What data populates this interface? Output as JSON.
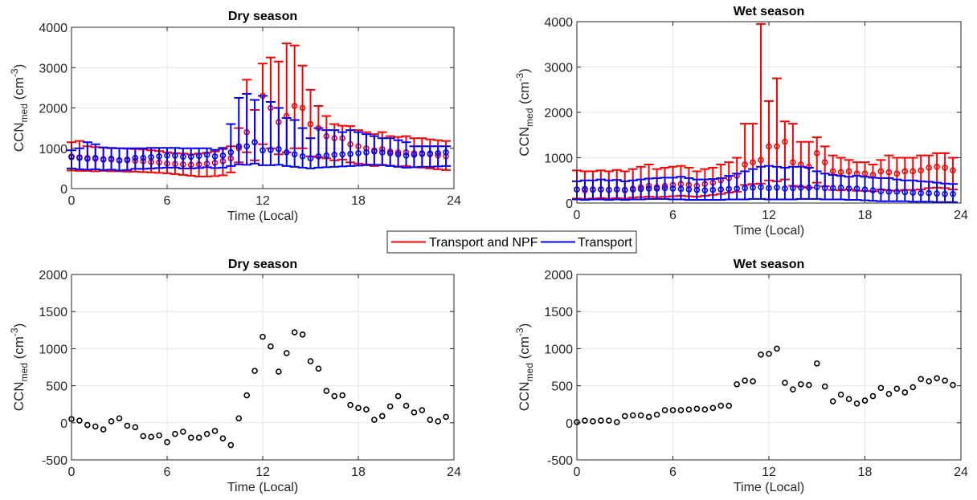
{
  "legend": {
    "items": [
      {
        "label": "Transport and NPF",
        "color": "#ff0000"
      },
      {
        "label": "Transport",
        "color": "#0000ff"
      }
    ]
  },
  "chart_data": [
    {
      "type": "scatter",
      "title": "Dry season",
      "xlabel": "Time (Local)",
      "ylabel": {
        "base": "CCN",
        "sub": "med",
        "unit_open": " (cm",
        "sup": "-3",
        "unit_close": ")"
      },
      "xlim": [
        0,
        24
      ],
      "ylim": [
        0,
        4000
      ],
      "xticks": [
        0,
        6,
        12,
        18,
        24
      ],
      "yticks": [
        0,
        1000,
        2000,
        3000,
        4000
      ],
      "grid": true,
      "x": [
        0,
        0.5,
        1,
        1.5,
        2,
        2.5,
        3,
        3.5,
        4,
        4.5,
        5,
        5.5,
        6,
        6.5,
        7,
        7.5,
        8,
        8.5,
        9,
        9.5,
        10,
        10.5,
        11,
        11.5,
        12,
        12.5,
        13,
        13.5,
        14,
        14.5,
        15,
        15.5,
        16,
        16.5,
        17,
        17.5,
        18,
        18.5,
        19,
        19.5,
        20,
        20.5,
        21,
        21.5,
        22,
        22.5,
        23,
        23.5
      ],
      "series": [
        {
          "name": "Transport and NPF",
          "color": "#ff0000",
          "values": [
            800,
            780,
            760,
            740,
            730,
            720,
            700,
            700,
            690,
            680,
            660,
            650,
            620,
            610,
            600,
            590,
            600,
            620,
            640,
            680,
            750,
            1000,
            1400,
            1150,
            2300,
            2000,
            1650,
            1800,
            2050,
            2000,
            1600,
            1500,
            1300,
            1250,
            1250,
            1100,
            1050,
            1000,
            950,
            980,
            920,
            900,
            900,
            880,
            880,
            850,
            820,
            800
          ],
          "err_low": [
            450,
            440,
            440,
            430,
            440,
            430,
            430,
            420,
            420,
            410,
            400,
            390,
            380,
            360,
            340,
            320,
            300,
            300,
            310,
            330,
            400,
            650,
            900,
            700,
            1100,
            1000,
            850,
            900,
            1000,
            1000,
            800,
            780,
            750,
            700,
            720,
            650,
            620,
            600,
            560,
            590,
            570,
            550,
            560,
            530,
            520,
            500,
            480,
            460
          ],
          "err_high": [
            1150,
            1180,
            1050,
            1030,
            1020,
            1000,
            1000,
            990,
            980,
            970,
            950,
            930,
            900,
            880,
            870,
            850,
            870,
            890,
            920,
            980,
            1050,
            1500,
            2700,
            1950,
            3100,
            3250,
            3150,
            3600,
            3550,
            3050,
            2450,
            2050,
            1800,
            1600,
            1560,
            1550,
            1450,
            1400,
            1350,
            1400,
            1300,
            1280,
            1300,
            1250,
            1250,
            1220,
            1200,
            1180
          ]
        },
        {
          "name": "Transport",
          "color": "#0000ff",
          "values": [
            780,
            760,
            740,
            760,
            720,
            740,
            700,
            720,
            760,
            760,
            780,
            800,
            820,
            820,
            790,
            790,
            810,
            840,
            800,
            820,
            900,
            1050,
            1050,
            1150,
            950,
            960,
            980,
            900,
            850,
            800,
            750,
            800,
            820,
            840,
            850,
            860,
            880,
            900,
            920,
            900,
            880,
            850,
            820,
            840,
            860,
            870,
            880,
            900
          ],
          "err_low": [
            500,
            480,
            470,
            480,
            460,
            470,
            450,
            460,
            490,
            490,
            500,
            510,
            520,
            520,
            500,
            500,
            510,
            530,
            510,
            520,
            560,
            600,
            590,
            620,
            580,
            580,
            590,
            560,
            540,
            520,
            500,
            520,
            530,
            540,
            550,
            560,
            570,
            580,
            590,
            580,
            560,
            540,
            520,
            530,
            540,
            540,
            550,
            560
          ],
          "err_high": [
            950,
            1000,
            1150,
            1100,
            1020,
            1010,
            1000,
            1000,
            1000,
            1000,
            1010,
            1010,
            1010,
            1010,
            1000,
            1000,
            1000,
            1000,
            960,
            1010,
            1600,
            2250,
            2350,
            2200,
            2300,
            2150,
            2000,
            1750,
            1700,
            1500,
            1250,
            1500,
            1450,
            1450,
            1400,
            1450,
            1400,
            1350,
            1300,
            1250,
            1250,
            1200,
            1150,
            1050,
            1050,
            1050,
            1050,
            1050
          ]
        }
      ]
    },
    {
      "type": "scatter",
      "title": "Wet season",
      "xlabel": "Time (Local)",
      "ylabel": {
        "base": "CCN",
        "sub": "med",
        "unit_open": " (cm",
        "sup": "-3",
        "unit_close": ")"
      },
      "xlim": [
        0,
        24
      ],
      "ylim": [
        0,
        4000
      ],
      "xticks": [
        0,
        6,
        12,
        18,
        24
      ],
      "yticks": [
        0,
        1000,
        2000,
        3000,
        4000
      ],
      "grid": true,
      "x": [
        0,
        0.5,
        1,
        1.5,
        2,
        2.5,
        3,
        3.5,
        4,
        4.5,
        5,
        5.5,
        6,
        6.5,
        7,
        7.5,
        8,
        8.5,
        9,
        9.5,
        10,
        10.5,
        11,
        11.5,
        12,
        12.5,
        13,
        13.5,
        14,
        14.5,
        15,
        15.5,
        16,
        16.5,
        17,
        17.5,
        18,
        18.5,
        19,
        19.5,
        20,
        20.5,
        21,
        21.5,
        22,
        22.5,
        23,
        23.5
      ],
      "series": [
        {
          "name": "Transport and NPF",
          "color": "#ff0000",
          "values": [
            300,
            280,
            290,
            300,
            290,
            300,
            280,
            320,
            350,
            380,
            350,
            380,
            400,
            420,
            400,
            380,
            420,
            450,
            500,
            550,
            600,
            850,
            900,
            950,
            1250,
            1250,
            1350,
            900,
            850,
            800,
            1100,
            900,
            700,
            680,
            700,
            650,
            650,
            620,
            700,
            680,
            650,
            700,
            700,
            720,
            780,
            800,
            780,
            720
          ],
          "err_low": [
            100,
            90,
            100,
            110,
            100,
            110,
            100,
            120,
            130,
            140,
            130,
            140,
            150,
            160,
            150,
            140,
            160,
            180,
            200,
            230,
            250,
            400,
            420,
            430,
            500,
            480,
            520,
            380,
            360,
            340,
            450,
            370,
            290,
            280,
            300,
            270,
            270,
            260,
            300,
            280,
            270,
            290,
            290,
            300,
            330,
            340,
            330,
            300
          ],
          "err_high": [
            720,
            700,
            700,
            720,
            700,
            730,
            700,
            750,
            800,
            850,
            750,
            780,
            800,
            820,
            780,
            700,
            750,
            780,
            850,
            900,
            1000,
            1750,
            1750,
            3950,
            2250,
            2750,
            1800,
            1750,
            1350,
            1350,
            1450,
            1250,
            1050,
            1000,
            950,
            900,
            900,
            850,
            950,
            1050,
            1000,
            1000,
            1000,
            1050,
            1050,
            1100,
            1100,
            1000
          ],
          "note": ""
        },
        {
          "name": "Transport",
          "color": "#0000ff",
          "values": [
            300,
            310,
            300,
            300,
            290,
            300,
            290,
            300,
            310,
            320,
            320,
            330,
            320,
            310,
            300,
            290,
            280,
            290,
            300,
            310,
            320,
            330,
            340,
            350,
            330,
            340,
            320,
            330,
            340,
            340,
            350,
            330,
            330,
            340,
            320,
            320,
            300,
            280,
            260,
            250,
            250,
            240,
            230,
            220,
            220,
            210,
            200,
            200
          ],
          "err_low": [
            80,
            70,
            80,
            80,
            70,
            80,
            70,
            80,
            80,
            90,
            90,
            90,
            80,
            80,
            70,
            70,
            70,
            70,
            70,
            80,
            80,
            80,
            90,
            90,
            80,
            80,
            80,
            80,
            90,
            90,
            90,
            80,
            80,
            80,
            70,
            70,
            60,
            50,
            40,
            40,
            40,
            40,
            30,
            30,
            30,
            20,
            20,
            20
          ],
          "err_high": [
            480,
            500,
            500,
            520,
            500,
            510,
            480,
            500,
            520,
            540,
            550,
            560,
            560,
            580,
            550,
            520,
            520,
            530,
            550,
            600,
            650,
            700,
            750,
            800,
            820,
            800,
            780,
            800,
            800,
            780,
            700,
            650,
            620,
            600,
            580,
            600,
            580,
            560,
            550,
            550,
            520,
            500,
            500,
            480,
            470,
            450,
            430,
            420
          ]
        }
      ]
    },
    {
      "type": "scatter",
      "title": "Dry season",
      "xlabel": "Time (Local)",
      "ylabel": {
        "base": "CCN",
        "sub": "med",
        "unit_open": " (cm",
        "sup": "-3",
        "unit_close": ")"
      },
      "xlim": [
        0,
        24
      ],
      "ylim": [
        -500,
        2000
      ],
      "xticks": [
        0,
        6,
        12,
        18,
        24
      ],
      "yticks": [
        -500,
        0,
        500,
        1000,
        1500,
        2000
      ],
      "grid": true,
      "x": [
        0,
        0.5,
        1,
        1.5,
        2,
        2.5,
        3,
        3.5,
        4,
        4.5,
        5,
        5.5,
        6,
        6.5,
        7,
        7.5,
        8,
        8.5,
        9,
        9.5,
        10,
        10.5,
        11,
        11.5,
        12,
        12.5,
        13,
        13.5,
        14,
        14.5,
        15,
        15.5,
        16,
        16.5,
        17,
        17.5,
        18,
        18.5,
        19,
        19.5,
        20,
        20.5,
        21,
        21.5,
        22,
        22.5,
        23,
        23.5
      ],
      "series": [
        {
          "color": "#000000",
          "values": [
            50,
            30,
            -30,
            -50,
            -90,
            20,
            60,
            -40,
            -60,
            -180,
            -190,
            -170,
            -260,
            -150,
            -120,
            -200,
            -200,
            -150,
            -110,
            -210,
            -300,
            60,
            370,
            700,
            1160,
            1030,
            690,
            940,
            1220,
            1190,
            830,
            730,
            430,
            360,
            370,
            240,
            200,
            180,
            40,
            90,
            220,
            360,
            230,
            140,
            170,
            40,
            20,
            80
          ]
        }
      ]
    },
    {
      "type": "scatter",
      "title": "Wet season",
      "xlabel": "Time (Local)",
      "ylabel": {
        "base": "CCN",
        "sub": "med",
        "unit_open": " (cm",
        "sup": "-3",
        "unit_close": ")"
      },
      "xlim": [
        0,
        24
      ],
      "ylim": [
        -500,
        2000
      ],
      "xticks": [
        0,
        6,
        12,
        18,
        24
      ],
      "yticks": [
        -500,
        0,
        500,
        1000,
        1500,
        2000
      ],
      "grid": true,
      "x": [
        0,
        0.5,
        1,
        1.5,
        2,
        2.5,
        3,
        3.5,
        4,
        4.5,
        5,
        5.5,
        6,
        6.5,
        7,
        7.5,
        8,
        8.5,
        9,
        9.5,
        10,
        10.5,
        11,
        11.5,
        12,
        12.5,
        13,
        13.5,
        14,
        14.5,
        15,
        15.5,
        16,
        16.5,
        17,
        17.5,
        18,
        18.5,
        19,
        19.5,
        20,
        20.5,
        21,
        21.5,
        22,
        22.5,
        23,
        23.5
      ],
      "series": [
        {
          "color": "#000000",
          "values": [
            10,
            30,
            20,
            30,
            30,
            10,
            90,
            100,
            100,
            80,
            110,
            170,
            170,
            170,
            180,
            190,
            180,
            200,
            230,
            230,
            520,
            570,
            560,
            920,
            930,
            1000,
            540,
            450,
            520,
            510,
            800,
            490,
            290,
            380,
            320,
            260,
            300,
            360,
            470,
            390,
            460,
            410,
            480,
            590,
            560,
            600,
            570,
            510
          ]
        }
      ]
    }
  ]
}
